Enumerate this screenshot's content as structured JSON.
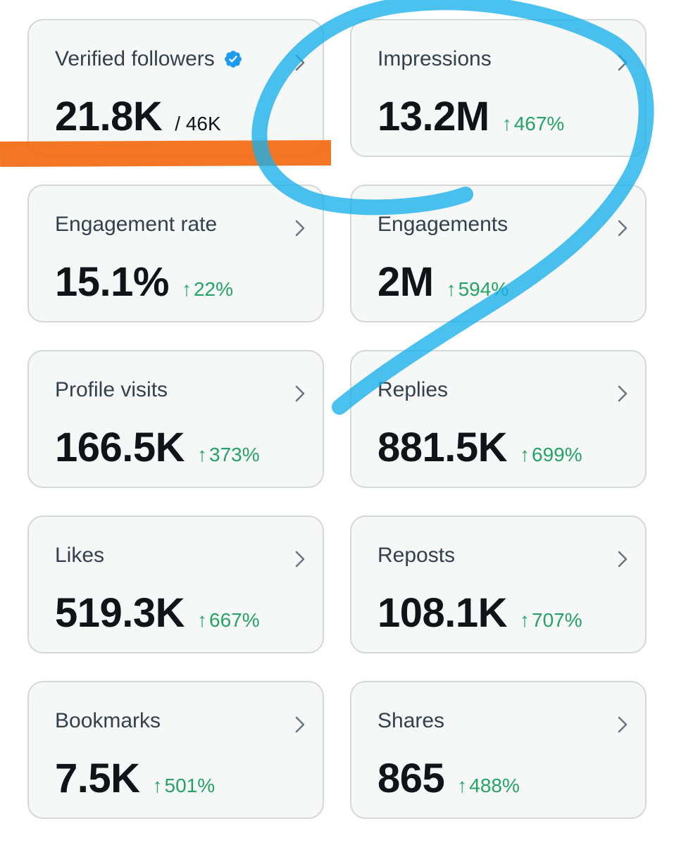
{
  "colors": {
    "card_bg": "#f6f7f7",
    "card_border": "#d3d8dc",
    "label": "#34404b",
    "value": "#0f1419",
    "increase": "#25a366",
    "verified_badge": "#1d9bf0",
    "annotation_orange": "#f26a12",
    "annotation_blue": "#17b0ea"
  },
  "metrics": [
    {
      "label": "Verified followers",
      "value": "21.8K",
      "total": "/ 46K",
      "icon": "verified-badge-icon"
    },
    {
      "label": "Impressions",
      "value": "13.2M",
      "arrow": "↑",
      "change": "467%"
    },
    {
      "label": "Engagement rate",
      "value": "15.1%",
      "arrow": "↑",
      "change": "22%"
    },
    {
      "label": "Engagements",
      "value": "2M",
      "arrow": "↑",
      "change": "594%"
    },
    {
      "label": "Profile visits",
      "value": "166.5K",
      "arrow": "↑",
      "change": "373%"
    },
    {
      "label": "Replies",
      "value": "881.5K",
      "arrow": "↑",
      "change": "699%"
    },
    {
      "label": "Likes",
      "value": "519.3K",
      "arrow": "↑",
      "change": "667%"
    },
    {
      "label": "Reposts",
      "value": "108.1K",
      "arrow": "↑",
      "change": "707%"
    },
    {
      "label": "Bookmarks",
      "value": "7.5K",
      "arrow": "↑",
      "change": "501%"
    },
    {
      "label": "Shares",
      "value": "865",
      "arrow": "↑",
      "change": "488%"
    }
  ],
  "annotations": [
    {
      "name": "orange-highlight-stroke",
      "type": "underline-marker"
    },
    {
      "name": "blue-scribble-stroke",
      "type": "loop-marker"
    }
  ]
}
